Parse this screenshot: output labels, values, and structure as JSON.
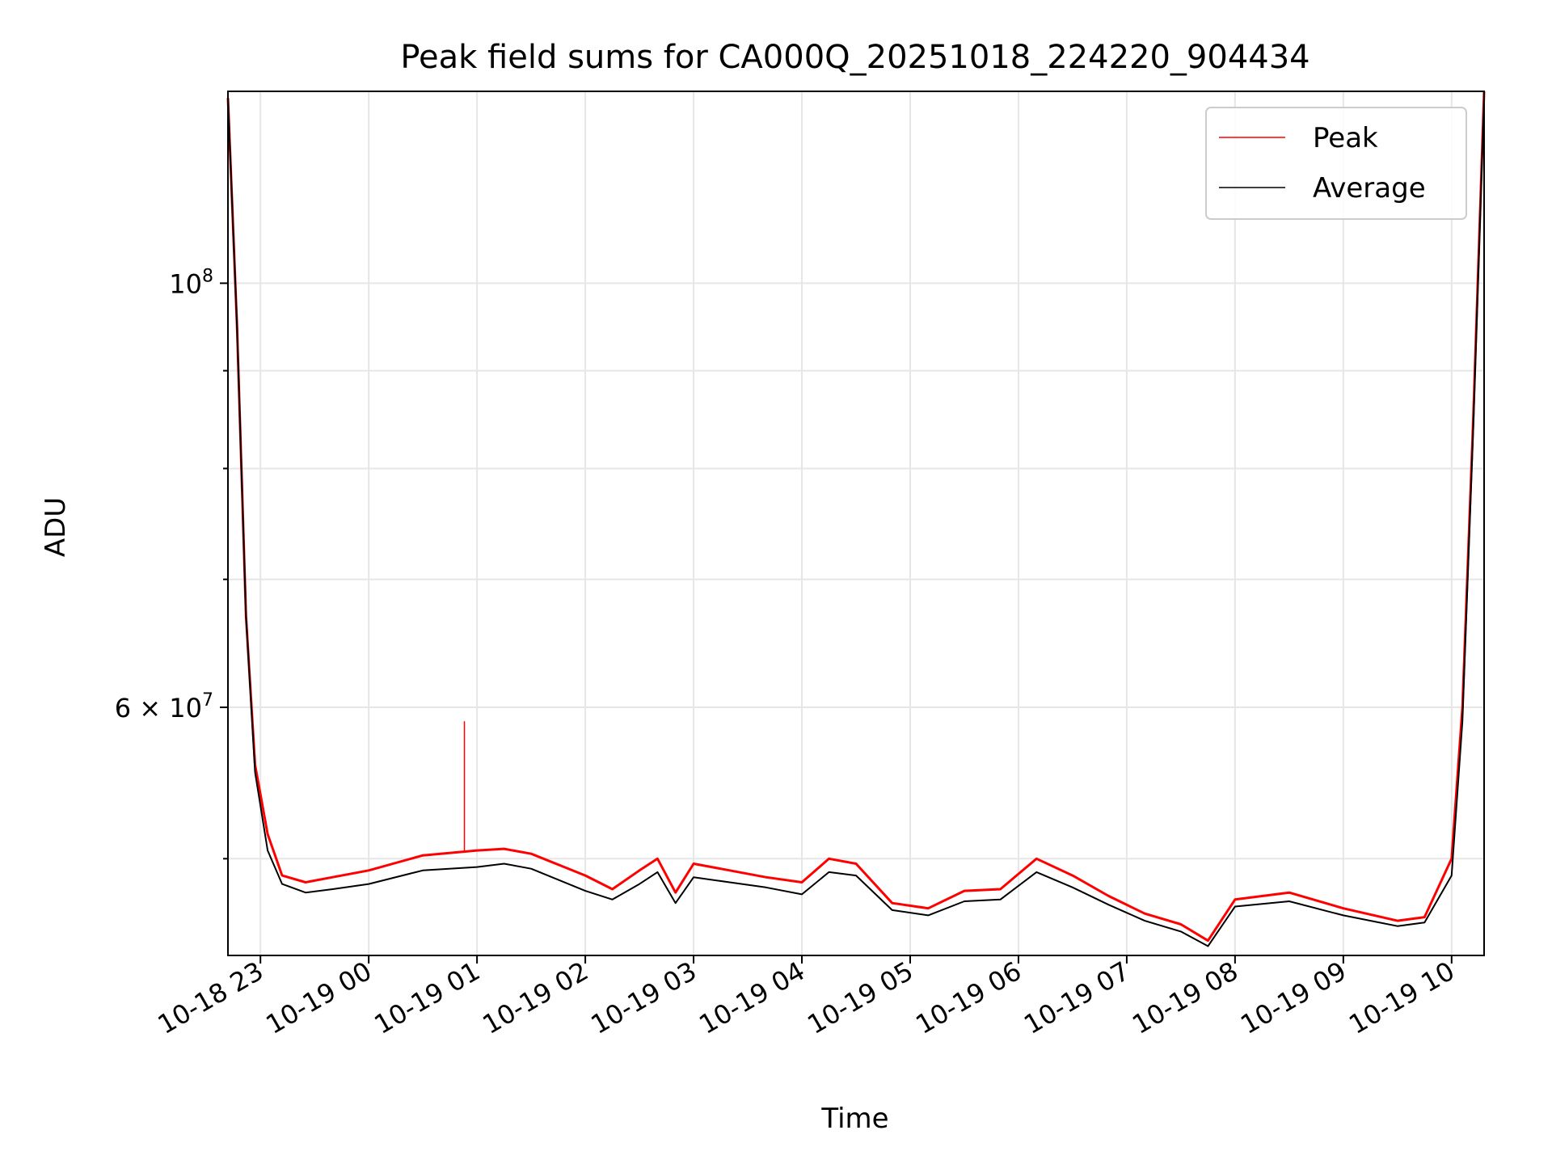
{
  "chart_data": {
    "type": "line",
    "title": "Peak field sums for CA000Q_20251018_224220_904434",
    "xlabel": "Time",
    "ylabel": "ADU",
    "yscale": "log",
    "grid": true,
    "legend_position": "top-right",
    "xlim": [
      "2025-10-18 22:42",
      "2025-10-19 10:18"
    ],
    "ylim": [
      44500000,
      126000000
    ],
    "x_ticks": [
      {
        "t": "2025-10-18 23:00",
        "label": "10-18 23"
      },
      {
        "t": "2025-10-19 00:00",
        "label": "10-19 00"
      },
      {
        "t": "2025-10-19 01:00",
        "label": "10-19 01"
      },
      {
        "t": "2025-10-19 02:00",
        "label": "10-19 02"
      },
      {
        "t": "2025-10-19 03:00",
        "label": "10-19 03"
      },
      {
        "t": "2025-10-19 04:00",
        "label": "10-19 04"
      },
      {
        "t": "2025-10-19 05:00",
        "label": "10-19 05"
      },
      {
        "t": "2025-10-19 06:00",
        "label": "10-19 06"
      },
      {
        "t": "2025-10-19 07:00",
        "label": "10-19 07"
      },
      {
        "t": "2025-10-19 08:00",
        "label": "10-19 08"
      },
      {
        "t": "2025-10-19 09:00",
        "label": "10-19 09"
      },
      {
        "t": "2025-10-19 10:00",
        "label": "10-19 10"
      }
    ],
    "y_major_ticks": [
      {
        "value": 60000000,
        "mantissa": "6",
        "exponent": "7",
        "label": "6 × 10^7"
      },
      {
        "value": 100000000,
        "mantissa": "",
        "exponent": "8",
        "label": "10^8"
      }
    ],
    "y_minor_ticks": [
      50000000,
      70000000,
      80000000,
      90000000
    ],
    "series": [
      {
        "name": "Peak",
        "color": "#ff0000",
        "points": [
          [
            "2025-10-18 22:42",
            125000000
          ],
          [
            "2025-10-18 22:47",
            95000000
          ],
          [
            "2025-10-18 22:52",
            67000000
          ],
          [
            "2025-10-18 22:57",
            56000000
          ],
          [
            "2025-10-18 23:04",
            51500000
          ],
          [
            "2025-10-18 23:12",
            49000000
          ],
          [
            "2025-10-18 23:25",
            48600000
          ],
          [
            "2025-10-18 23:40",
            48900000
          ],
          [
            "2025-10-19 00:00",
            49300000
          ],
          [
            "2025-10-19 00:30",
            50200000
          ],
          [
            "2025-10-19 01:00",
            50500000
          ],
          [
            "2025-10-19 01:15",
            50600000
          ],
          [
            "2025-10-19 01:30",
            50300000
          ],
          [
            "2025-10-19 02:00",
            49000000
          ],
          [
            "2025-10-19 02:15",
            48200000
          ],
          [
            "2025-10-19 02:30",
            49300000
          ],
          [
            "2025-10-19 02:40",
            50000000
          ],
          [
            "2025-10-19 02:50",
            48000000
          ],
          [
            "2025-10-19 03:00",
            49700000
          ],
          [
            "2025-10-19 03:20",
            49300000
          ],
          [
            "2025-10-19 03:40",
            48900000
          ],
          [
            "2025-10-19 04:00",
            48600000
          ],
          [
            "2025-10-19 04:15",
            50000000
          ],
          [
            "2025-10-19 04:30",
            49700000
          ],
          [
            "2025-10-19 04:50",
            47400000
          ],
          [
            "2025-10-19 05:10",
            47100000
          ],
          [
            "2025-10-19 05:30",
            48100000
          ],
          [
            "2025-10-19 05:50",
            48200000
          ],
          [
            "2025-10-19 06:10",
            50000000
          ],
          [
            "2025-10-19 06:30",
            49000000
          ],
          [
            "2025-10-19 06:50",
            47800000
          ],
          [
            "2025-10-19 07:10",
            46800000
          ],
          [
            "2025-10-19 07:30",
            46200000
          ],
          [
            "2025-10-19 07:45",
            45300000
          ],
          [
            "2025-10-19 08:00",
            47600000
          ],
          [
            "2025-10-19 08:30",
            48000000
          ],
          [
            "2025-10-19 09:00",
            47100000
          ],
          [
            "2025-10-19 09:30",
            46400000
          ],
          [
            "2025-10-19 09:45",
            46600000
          ],
          [
            "2025-10-19 10:00",
            50000000
          ],
          [
            "2025-10-19 10:06",
            60000000
          ],
          [
            "2025-10-19 10:12",
            85000000
          ],
          [
            "2025-10-19 10:18",
            126000000
          ]
        ],
        "spikes": [
          [
            "2025-10-19 00:53",
            59000000
          ]
        ]
      },
      {
        "name": "Average",
        "color": "#000000",
        "points": [
          [
            "2025-10-18 22:42",
            125000000
          ],
          [
            "2025-10-18 22:47",
            95000000
          ],
          [
            "2025-10-18 22:52",
            67000000
          ],
          [
            "2025-10-18 22:57",
            55500000
          ],
          [
            "2025-10-18 23:04",
            50500000
          ],
          [
            "2025-10-18 23:12",
            48500000
          ],
          [
            "2025-10-18 23:25",
            48000000
          ],
          [
            "2025-10-18 23:40",
            48200000
          ],
          [
            "2025-10-19 00:00",
            48500000
          ],
          [
            "2025-10-19 00:30",
            49300000
          ],
          [
            "2025-10-19 01:00",
            49500000
          ],
          [
            "2025-10-19 01:15",
            49700000
          ],
          [
            "2025-10-19 01:30",
            49400000
          ],
          [
            "2025-10-19 02:00",
            48100000
          ],
          [
            "2025-10-19 02:15",
            47600000
          ],
          [
            "2025-10-19 02:30",
            48500000
          ],
          [
            "2025-10-19 02:40",
            49200000
          ],
          [
            "2025-10-19 02:50",
            47400000
          ],
          [
            "2025-10-19 03:00",
            48900000
          ],
          [
            "2025-10-19 03:20",
            48600000
          ],
          [
            "2025-10-19 03:40",
            48300000
          ],
          [
            "2025-10-19 04:00",
            47900000
          ],
          [
            "2025-10-19 04:15",
            49200000
          ],
          [
            "2025-10-19 04:30",
            49000000
          ],
          [
            "2025-10-19 04:50",
            47000000
          ],
          [
            "2025-10-19 05:10",
            46700000
          ],
          [
            "2025-10-19 05:30",
            47500000
          ],
          [
            "2025-10-19 05:50",
            47600000
          ],
          [
            "2025-10-19 06:10",
            49200000
          ],
          [
            "2025-10-19 06:30",
            48300000
          ],
          [
            "2025-10-19 06:50",
            47300000
          ],
          [
            "2025-10-19 07:10",
            46400000
          ],
          [
            "2025-10-19 07:30",
            45800000
          ],
          [
            "2025-10-19 07:45",
            45000000
          ],
          [
            "2025-10-19 08:00",
            47200000
          ],
          [
            "2025-10-19 08:30",
            47500000
          ],
          [
            "2025-10-19 09:00",
            46700000
          ],
          [
            "2025-10-19 09:30",
            46100000
          ],
          [
            "2025-10-19 09:45",
            46300000
          ],
          [
            "2025-10-19 10:00",
            49000000
          ],
          [
            "2025-10-19 10:06",
            59000000
          ],
          [
            "2025-10-19 10:12",
            84000000
          ],
          [
            "2025-10-19 10:18",
            125000000
          ]
        ]
      }
    ]
  }
}
